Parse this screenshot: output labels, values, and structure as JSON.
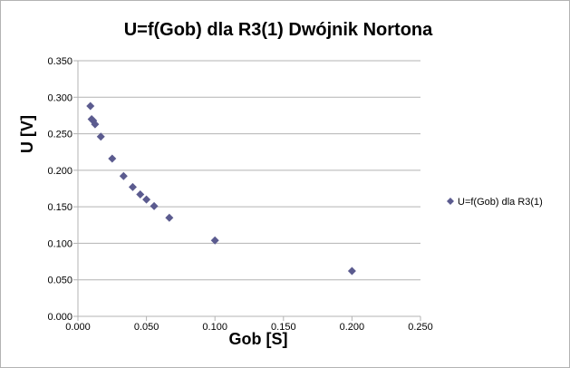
{
  "chart_data": {
    "type": "scatter",
    "title": "U=f(Gob) dla R3(1) Dwójnik Nortona",
    "xlabel": "Gob [S]",
    "ylabel": "U [V]",
    "xlim": [
      0,
      0.25
    ],
    "ylim": [
      0,
      0.35
    ],
    "xticks": [
      "0.000",
      "0.050",
      "0.100",
      "0.150",
      "0.200",
      "0.250"
    ],
    "yticks": [
      "0.000",
      "0.050",
      "0.100",
      "0.150",
      "0.200",
      "0.250",
      "0.300",
      "0.350"
    ],
    "grid": "horizontal",
    "legend_position": "right",
    "series": [
      {
        "name": "U=f(Gob) dla R3(1)",
        "color": "#5b5b8f",
        "marker": "diamond",
        "x": [
          0.0091,
          0.01,
          0.0111,
          0.0125,
          0.0167,
          0.025,
          0.0333,
          0.04,
          0.0455,
          0.05,
          0.0556,
          0.0667,
          0.1,
          0.2
        ],
        "y": [
          0.288,
          0.27,
          0.268,
          0.263,
          0.246,
          0.216,
          0.192,
          0.177,
          0.167,
          0.16,
          0.151,
          0.135,
          0.104,
          0.062
        ]
      }
    ]
  }
}
